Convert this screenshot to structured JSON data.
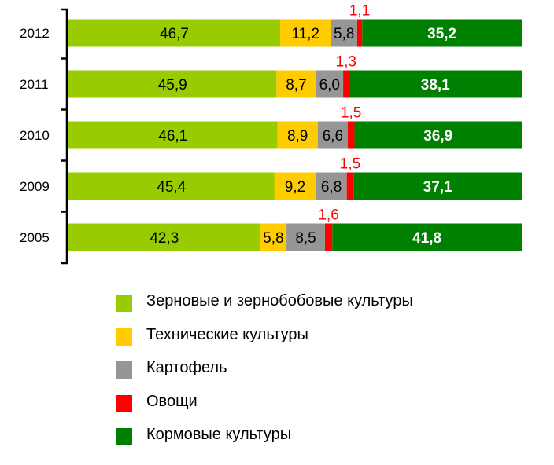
{
  "chart_data": {
    "type": "bar",
    "stacked": true,
    "orientation": "horizontal",
    "categories": [
      "2012",
      "2011",
      "2010",
      "2009",
      "2005"
    ],
    "series": [
      {
        "name": "Зерновые и зернобобовые культуры",
        "color": "#99cc00",
        "values": [
          46.7,
          45.9,
          46.1,
          45.4,
          42.3
        ],
        "labels": [
          "46,7",
          "45,9",
          "46,1",
          "45,4",
          "42,3"
        ]
      },
      {
        "name": "Технические культуры",
        "color": "#ffcc00",
        "values": [
          11.2,
          8.7,
          8.9,
          9.2,
          5.8
        ],
        "labels": [
          "11,2",
          "8,7",
          "8,9",
          "9,2",
          "5,8"
        ]
      },
      {
        "name": "Картофель",
        "color": "#969696",
        "values": [
          5.8,
          6.0,
          6.6,
          6.8,
          8.5
        ],
        "labels": [
          "5,8",
          "6,0",
          "6,6",
          "6,8",
          "8,5"
        ]
      },
      {
        "name": "Овощи",
        "color": "#ff0000",
        "values": [
          1.1,
          1.3,
          1.5,
          1.5,
          1.6
        ],
        "labels": [
          "1,1",
          "1,3",
          "1,5",
          "1,5",
          "1,6"
        ]
      },
      {
        "name": "Кормовые культуры",
        "color": "#008000",
        "values": [
          35.2,
          38.1,
          36.9,
          37.1,
          41.8
        ],
        "labels": [
          "35,2",
          "38,1",
          "36,9",
          "37,1",
          "41,8"
        ]
      }
    ],
    "xlim": [
      0,
      100
    ],
    "grid": false,
    "legend": "bottom"
  }
}
